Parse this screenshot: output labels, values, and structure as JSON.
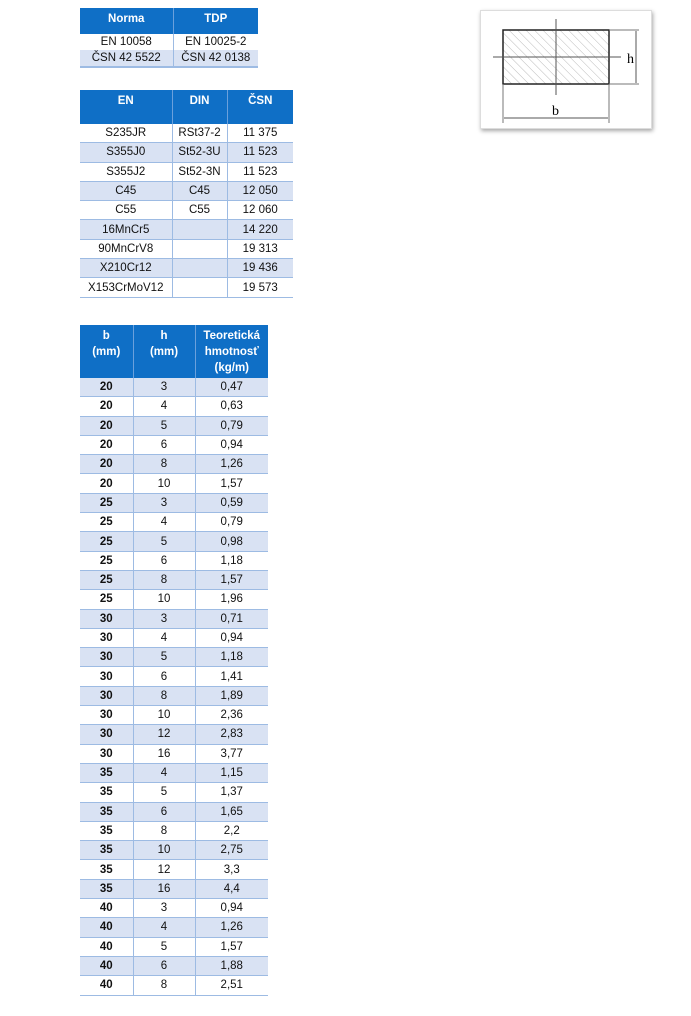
{
  "standards": {
    "headers": [
      "Norma",
      "TDP"
    ],
    "rows": [
      [
        "EN 10058",
        "EN 10025-2"
      ],
      [
        "ČSN 42 5522",
        "ČSN 42 0138"
      ]
    ]
  },
  "grades": {
    "headers": [
      "EN",
      "DIN",
      "ČSN"
    ],
    "rows": [
      [
        "S235JR",
        "RSt37-2",
        "11 375"
      ],
      [
        "S355J0",
        "St52-3U",
        "11 523"
      ],
      [
        "S355J2",
        "St52-3N",
        "11 523"
      ],
      [
        "C45",
        "C45",
        "12 050"
      ],
      [
        "C55",
        "C55",
        "12 060"
      ],
      [
        "16MnCr5",
        "",
        "14 220"
      ],
      [
        "90MnCrV8",
        "",
        "19 313"
      ],
      [
        "X210Cr12",
        "",
        "19 436"
      ],
      [
        "X153CrMoV12",
        "",
        "19 573"
      ]
    ]
  },
  "dimensions": {
    "headers": [
      [
        "b",
        "(mm)"
      ],
      [
        "h",
        "(mm)"
      ],
      [
        "Teoretická",
        "hmotnosť",
        "(kg/m)"
      ]
    ],
    "rows": [
      [
        "20",
        "3",
        "0,47"
      ],
      [
        "20",
        "4",
        "0,63"
      ],
      [
        "20",
        "5",
        "0,79"
      ],
      [
        "20",
        "6",
        "0,94"
      ],
      [
        "20",
        "8",
        "1,26"
      ],
      [
        "20",
        "10",
        "1,57"
      ],
      [
        "25",
        "3",
        "0,59"
      ],
      [
        "25",
        "4",
        "0,79"
      ],
      [
        "25",
        "5",
        "0,98"
      ],
      [
        "25",
        "6",
        "1,18"
      ],
      [
        "25",
        "8",
        "1,57"
      ],
      [
        "25",
        "10",
        "1,96"
      ],
      [
        "30",
        "3",
        "0,71"
      ],
      [
        "30",
        "4",
        "0,94"
      ],
      [
        "30",
        "5",
        "1,18"
      ],
      [
        "30",
        "6",
        "1,41"
      ],
      [
        "30",
        "8",
        "1,89"
      ],
      [
        "30",
        "10",
        "2,36"
      ],
      [
        "30",
        "12",
        "2,83"
      ],
      [
        "30",
        "16",
        "3,77"
      ],
      [
        "35",
        "4",
        "1,15"
      ],
      [
        "35",
        "5",
        "1,37"
      ],
      [
        "35",
        "6",
        "1,65"
      ],
      [
        "35",
        "8",
        "2,2"
      ],
      [
        "35",
        "10",
        "2,75"
      ],
      [
        "35",
        "12",
        "3,3"
      ],
      [
        "35",
        "16",
        "4,4"
      ],
      [
        "40",
        "3",
        "0,94"
      ],
      [
        "40",
        "4",
        "1,26"
      ],
      [
        "40",
        "5",
        "1,57"
      ],
      [
        "40",
        "6",
        "1,88"
      ],
      [
        "40",
        "8",
        "2,51"
      ]
    ]
  },
  "figure": {
    "label_h": "h",
    "label_b": "b"
  }
}
